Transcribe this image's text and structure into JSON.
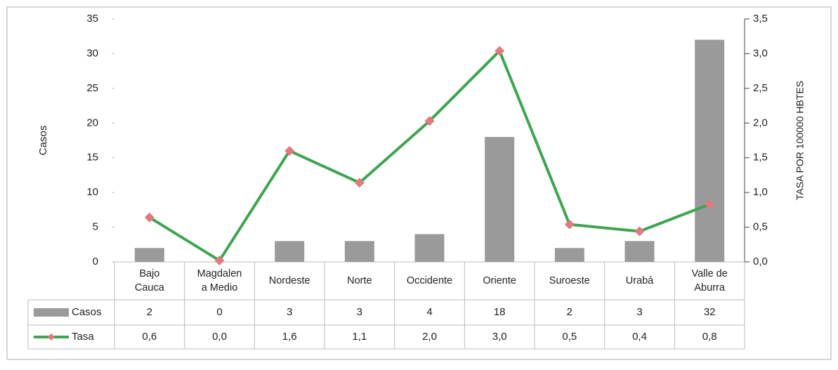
{
  "chart_data": {
    "type": "bar_line",
    "categories": [
      "Bajo Cauca",
      "Magdalena Medio",
      "Nordeste",
      "Norte",
      "Occidente",
      "Oriente",
      "Suroeste",
      "Urabá",
      "Valle de Aburra"
    ],
    "y_label": "Casos",
    "y2_label": "TASA POR 100000 HBTES",
    "series": [
      {
        "name": "Casos",
        "type": "bar",
        "color": "#9a9a9a",
        "values": [
          2,
          0,
          3,
          3,
          4,
          18,
          2,
          3,
          32
        ]
      },
      {
        "name": "Tasa",
        "type": "line",
        "axis": "y2",
        "color": "#3fa452",
        "marker_color": "#e07a80",
        "values": [
          0.64,
          0.02,
          1.6,
          1.14,
          2.03,
          3.04,
          0.54,
          0.44,
          0.83
        ],
        "value_labels": [
          "0,6",
          "0,0",
          "1,6",
          "1,1",
          "2,0",
          "3,0",
          "0,5",
          "0,4",
          "0,8"
        ]
      }
    ],
    "ylim": [
      0,
      35
    ],
    "yticks": [
      0,
      5,
      10,
      15,
      20,
      25,
      30,
      35
    ],
    "y2lim": [
      0,
      3.5
    ],
    "y2ticks": [
      {
        "value": 0,
        "label": "0,0"
      },
      {
        "value": 0.5,
        "label": "0,5"
      },
      {
        "value": 1,
        "label": "1,0"
      },
      {
        "value": 1.5,
        "label": "1,5"
      },
      {
        "value": 2,
        "label": "2,0"
      },
      {
        "value": 2.5,
        "label": "2,5"
      },
      {
        "value": 3,
        "label": "3,0"
      },
      {
        "value": 3.5,
        "label": "3,5"
      }
    ],
    "grid": false
  }
}
